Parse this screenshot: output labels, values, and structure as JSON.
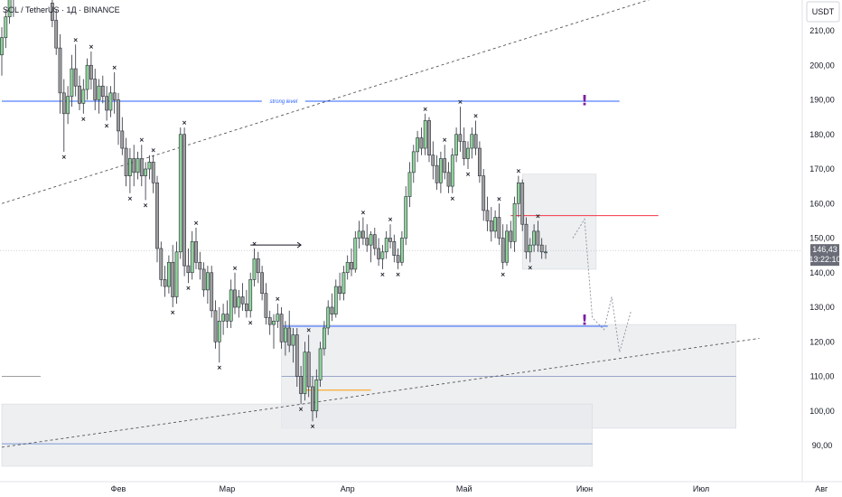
{
  "header": {
    "symbol_title": "SOL / TetherUS · 1Д · BINANCE",
    "currency": "USDT"
  },
  "colors": {
    "candle_up": "#8fd39a",
    "candle_down": "#9e9e9e",
    "candle_border": "#2a2e39",
    "level_blue": "#2962ff",
    "level_red": "#f23645",
    "level_orange": "#ff9800",
    "zone_gray": "#e7e9ec",
    "exclamation": "#7b1fa2",
    "trend": "#555555"
  },
  "chart_data": {
    "type": "candlestick",
    "title": "SOL / TetherUS · 1Д · BINANCE",
    "quote_currency": "USDT",
    "ylim": [
      84,
      224
    ],
    "y_ticks": [
      "210,00",
      "200,00",
      "190,00",
      "180,00",
      "170,00",
      "160,00",
      "150,00",
      "140,00",
      "130,00",
      "120,00",
      "110,00",
      "100,00",
      "90,00"
    ],
    "y_tick_values": [
      210,
      200,
      190,
      180,
      170,
      160,
      150,
      140,
      130,
      120,
      110,
      100,
      90
    ],
    "x_ticks": [
      "Фев",
      "Мар",
      "Апр",
      "Май",
      "Июн",
      "Июл",
      "Авг"
    ],
    "x_tick_days": [
      31,
      59,
      90,
      120,
      151,
      181,
      212
    ],
    "x_range_days": [
      1,
      220
    ],
    "grid": false,
    "last_price": {
      "value": 146.43,
      "label": "146,43",
      "countdown": "13:22:10"
    },
    "horizontal_levels": [
      {
        "price": 189.6,
        "day_start": 1,
        "day_end": 160,
        "color": "#2962ff",
        "label": "strong level"
      },
      {
        "price": 156.5,
        "day_start": 132,
        "day_end": 170,
        "color": "#f23645"
      },
      {
        "price": 124.5,
        "day_start": 73,
        "day_end": 157,
        "color": "#2962ff"
      },
      {
        "price": 106.0,
        "day_start": 79,
        "day_end": 96,
        "color": "#ff9800"
      },
      {
        "price": 90.5,
        "day_start": 1,
        "day_end": 153,
        "color": "#7e96d6"
      },
      {
        "price": 110.0,
        "day_start": 73,
        "day_end": 190,
        "color": "#9aa6c7"
      },
      {
        "price": 110.0,
        "day_start": 1,
        "day_end": 11,
        "color": "#9e9e9e"
      }
    ],
    "zones": [
      {
        "day_start": 73,
        "day_end": 190,
        "price_top": 125,
        "price_bottom": 95
      },
      {
        "day_start": 1,
        "day_end": 153,
        "price_top": 102,
        "price_bottom": 84
      },
      {
        "day_start": 135,
        "day_end": 154,
        "price_top": 168.5,
        "price_bottom": 141
      }
    ],
    "trendlines": [
      {
        "from": [
          1,
          160
        ],
        "to": [
          196,
          229
        ]
      },
      {
        "from": [
          1,
          89.5
        ],
        "to": [
          196,
          121
        ]
      }
    ],
    "projection_path": [
      [
        148,
        150
      ],
      [
        151,
        155.5
      ],
      [
        153,
        127
      ],
      [
        156,
        123.5
      ],
      [
        158,
        133
      ],
      [
        160,
        117
      ],
      [
        163,
        129
      ]
    ],
    "arrow": {
      "from": [
        65,
        148
      ],
      "to": [
        78,
        148
      ]
    },
    "annotation_marks": [
      {
        "text": "!",
        "day": 151,
        "price": 190
      },
      {
        "text": "!",
        "day": 151,
        "price": 126.5
      }
    ],
    "ohlc": [
      [
        1,
        203,
        211,
        197,
        208
      ],
      [
        2,
        208,
        216,
        205,
        214
      ],
      [
        3,
        214,
        222,
        212,
        219
      ],
      [
        4,
        219,
        226,
        214,
        222
      ],
      [
        14,
        218,
        222,
        211,
        213
      ],
      [
        15,
        213,
        216,
        203,
        205
      ],
      [
        16,
        205,
        209,
        186,
        192
      ],
      [
        17,
        192,
        196,
        175,
        186
      ],
      [
        18,
        186,
        194,
        183,
        191
      ],
      [
        19,
        191,
        203,
        188,
        199
      ],
      [
        20,
        199,
        206,
        191,
        194
      ],
      [
        21,
        194,
        197,
        187,
        189
      ],
      [
        22,
        189,
        196,
        186,
        193
      ],
      [
        23,
        193,
        202,
        190,
        200
      ],
      [
        24,
        200,
        204,
        193,
        196
      ],
      [
        25,
        196,
        199,
        187,
        190
      ],
      [
        26,
        190,
        196,
        186,
        194
      ],
      [
        27,
        194,
        197,
        189,
        191
      ],
      [
        28,
        191,
        194,
        184,
        187
      ],
      [
        29,
        187,
        194,
        185,
        192
      ],
      [
        30,
        192,
        198,
        186,
        190
      ],
      [
        31,
        190,
        192,
        177,
        181
      ],
      [
        32,
        181,
        185,
        174,
        176
      ],
      [
        33,
        176,
        179,
        165,
        168
      ],
      [
        34,
        168,
        176,
        163,
        173
      ],
      [
        35,
        173,
        177,
        165,
        169
      ],
      [
        36,
        169,
        175,
        167,
        173
      ],
      [
        37,
        173,
        177,
        165,
        168
      ],
      [
        38,
        168,
        172,
        161,
        170
      ],
      [
        39,
        170,
        174,
        167,
        172
      ],
      [
        40,
        172,
        174,
        163,
        166
      ],
      [
        41,
        166,
        168,
        143,
        147
      ],
      [
        42,
        147,
        149,
        136,
        138
      ],
      [
        43,
        138,
        142,
        133,
        136
      ],
      [
        44,
        136,
        145,
        134,
        143
      ],
      [
        45,
        143,
        148,
        130,
        133
      ],
      [
        46,
        133,
        149,
        131,
        146
      ],
      [
        47,
        146,
        182,
        144,
        180
      ],
      [
        48,
        180,
        182,
        139,
        142
      ],
      [
        49,
        142,
        147,
        137,
        140
      ],
      [
        50,
        140,
        152,
        138,
        149
      ],
      [
        51,
        149,
        153,
        141,
        143
      ],
      [
        52,
        143,
        146,
        138,
        141
      ],
      [
        53,
        141,
        143,
        133,
        135
      ],
      [
        54,
        135,
        142,
        131,
        140
      ],
      [
        55,
        140,
        142,
        127,
        129
      ],
      [
        56,
        129,
        132,
        118,
        120
      ],
      [
        57,
        120,
        130,
        114,
        126
      ],
      [
        58,
        126,
        131,
        122,
        128
      ],
      [
        59,
        128,
        132,
        124,
        126
      ],
      [
        60,
        126,
        138,
        124,
        135
      ],
      [
        61,
        135,
        140,
        128,
        130
      ],
      [
        62,
        130,
        135,
        127,
        133
      ],
      [
        63,
        133,
        137,
        129,
        131
      ],
      [
        64,
        131,
        135,
        127,
        129
      ],
      [
        65,
        129,
        140,
        127,
        138
      ],
      [
        66,
        138,
        147,
        136,
        144
      ],
      [
        67,
        144,
        146,
        137,
        140
      ],
      [
        68,
        140,
        142,
        132,
        134
      ],
      [
        69,
        134,
        137,
        125,
        127
      ],
      [
        70,
        127,
        129,
        122,
        125
      ],
      [
        71,
        125,
        128,
        118,
        126
      ],
      [
        72,
        126,
        131,
        124,
        128
      ],
      [
        73,
        128,
        130,
        118,
        120
      ],
      [
        74,
        120,
        126,
        116,
        124
      ],
      [
        75,
        124,
        129,
        117,
        119
      ],
      [
        76,
        119,
        124,
        114,
        122
      ],
      [
        77,
        122,
        124,
        107,
        110
      ],
      [
        78,
        110,
        113,
        102,
        105
      ],
      [
        79,
        105,
        120,
        103,
        117
      ],
      [
        80,
        117,
        122,
        104,
        107
      ],
      [
        81,
        107,
        110,
        97,
        100
      ],
      [
        82,
        100,
        112,
        98,
        109
      ],
      [
        83,
        109,
        120,
        107,
        118
      ],
      [
        84,
        118,
        126,
        116,
        124
      ],
      [
        85,
        124,
        132,
        122,
        130
      ],
      [
        86,
        130,
        134,
        126,
        128
      ],
      [
        87,
        128,
        138,
        127,
        136
      ],
      [
        88,
        136,
        140,
        132,
        134
      ],
      [
        89,
        134,
        142,
        132,
        140
      ],
      [
        90,
        140,
        145,
        138,
        143
      ],
      [
        91,
        143,
        147,
        139,
        141
      ],
      [
        92,
        141,
        152,
        140,
        150
      ],
      [
        93,
        150,
        155,
        147,
        152
      ],
      [
        94,
        152,
        156,
        148,
        150
      ],
      [
        95,
        150,
        154,
        146,
        148
      ],
      [
        96,
        148,
        152,
        143,
        151
      ],
      [
        97,
        151,
        153,
        145,
        147
      ],
      [
        98,
        147,
        150,
        142,
        144
      ],
      [
        99,
        144,
        148,
        141,
        146
      ],
      [
        100,
        146,
        152,
        144,
        150
      ],
      [
        101,
        150,
        154,
        147,
        149
      ],
      [
        102,
        149,
        151,
        143,
        145
      ],
      [
        103,
        145,
        147,
        141,
        143
      ],
      [
        104,
        143,
        152,
        142,
        150
      ],
      [
        105,
        150,
        165,
        148,
        162
      ],
      [
        106,
        162,
        172,
        159,
        169
      ],
      [
        107,
        169,
        177,
        166,
        175
      ],
      [
        108,
        175,
        181,
        172,
        179
      ],
      [
        109,
        179,
        182,
        174,
        176
      ],
      [
        110,
        176,
        186,
        174,
        184
      ],
      [
        111,
        184,
        185,
        172,
        174
      ],
      [
        112,
        174,
        178,
        167,
        171
      ],
      [
        113,
        171,
        174,
        164,
        166
      ],
      [
        114,
        166,
        175,
        163,
        173
      ],
      [
        115,
        173,
        177,
        167,
        169
      ],
      [
        116,
        169,
        172,
        163,
        165
      ],
      [
        117,
        165,
        176,
        163,
        174
      ],
      [
        118,
        174,
        182,
        172,
        180
      ],
      [
        119,
        180,
        188,
        175,
        178
      ],
      [
        120,
        178,
        182,
        171,
        173
      ],
      [
        121,
        173,
        178,
        170,
        176
      ],
      [
        122,
        176,
        182,
        173,
        180
      ],
      [
        123,
        180,
        184,
        174,
        176
      ],
      [
        124,
        176,
        178,
        166,
        168
      ],
      [
        125,
        168,
        170,
        155,
        158
      ],
      [
        126,
        158,
        162,
        152,
        155
      ],
      [
        127,
        155,
        159,
        149,
        152
      ],
      [
        128,
        152,
        158,
        150,
        156
      ],
      [
        129,
        156,
        160,
        148,
        150
      ],
      [
        130,
        150,
        154,
        141,
        143
      ],
      [
        131,
        143,
        154,
        142,
        152
      ],
      [
        132,
        152,
        155,
        147,
        149
      ],
      [
        133,
        149,
        162,
        146,
        160
      ],
      [
        134,
        160,
        168,
        156,
        166
      ],
      [
        135,
        166,
        167,
        152,
        154
      ],
      [
        136,
        154,
        156,
        144,
        146
      ],
      [
        137,
        146,
        150,
        143,
        148
      ],
      [
        138,
        148,
        154,
        146,
        152
      ],
      [
        139,
        152,
        155,
        146,
        148
      ],
      [
        140,
        148,
        150,
        144,
        146
      ],
      [
        141,
        146,
        148,
        144,
        146
      ]
    ]
  }
}
